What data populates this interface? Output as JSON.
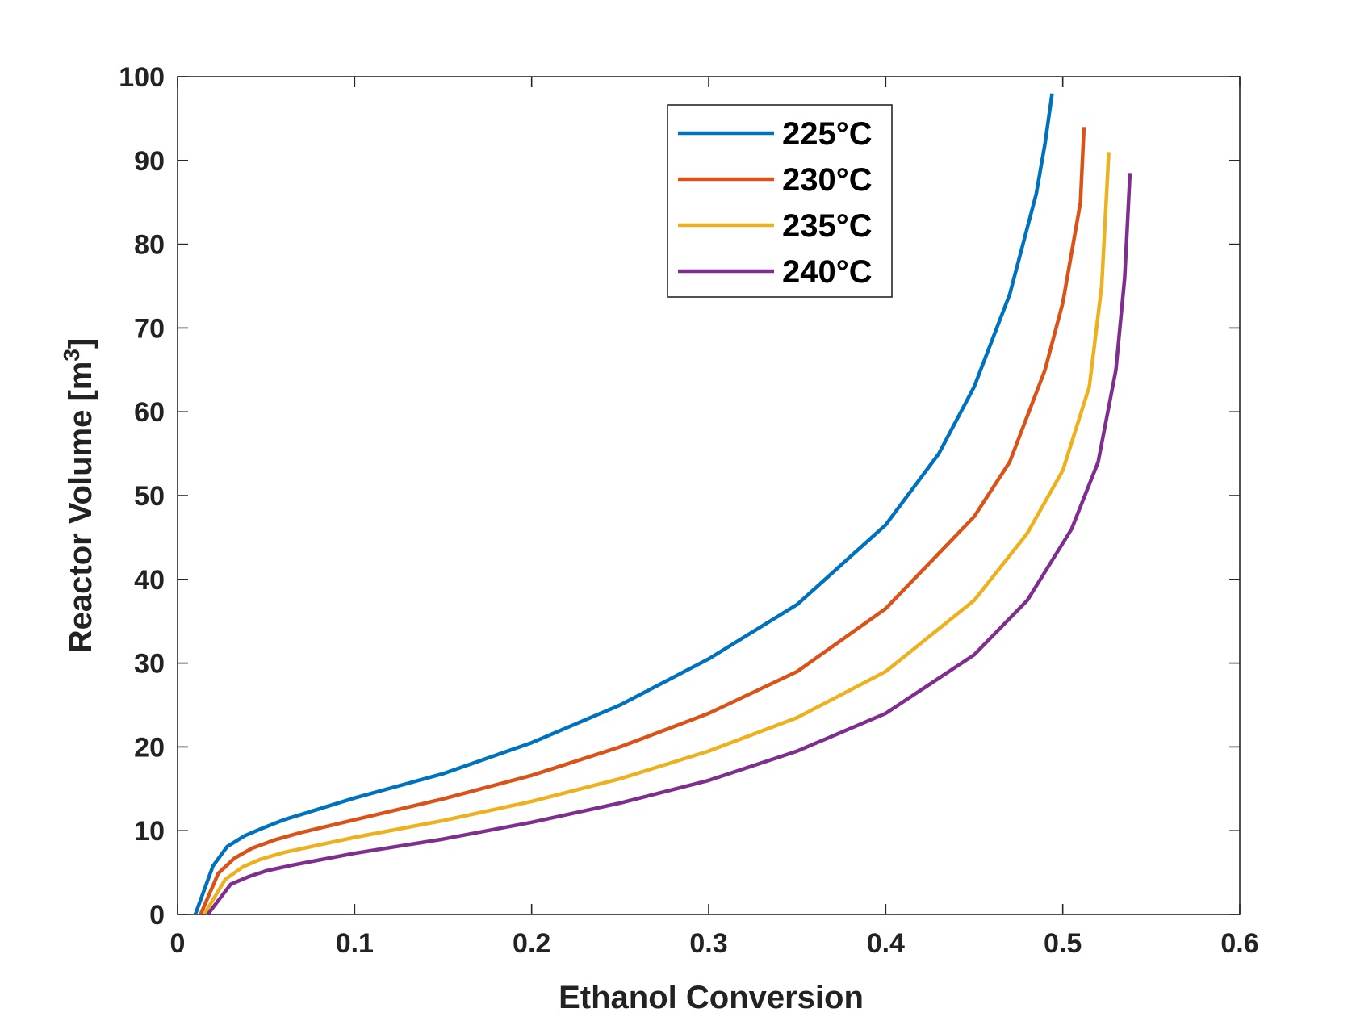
{
  "chart_data": {
    "type": "line",
    "title": "",
    "xlabel": "Ethanol Conversion",
    "ylabel": "Reactor Volume [m",
    "ylabel_superscript": "3",
    "ylabel_suffix": "]",
    "xlim": [
      0,
      0.6
    ],
    "ylim": [
      0,
      100
    ],
    "x_ticks": [
      0,
      0.1,
      0.2,
      0.3,
      0.4,
      0.5,
      0.6
    ],
    "x_tick_labels": [
      "0",
      "0.1",
      "0.2",
      "0.3",
      "0.4",
      "0.5",
      "0.6"
    ],
    "y_ticks": [
      0,
      10,
      20,
      30,
      40,
      50,
      60,
      70,
      80,
      90,
      100
    ],
    "y_tick_labels": [
      "0",
      "10",
      "20",
      "30",
      "40",
      "50",
      "60",
      "70",
      "80",
      "90",
      "100"
    ],
    "grid": false,
    "legend_position": "top-right",
    "series": [
      {
        "name": "225°C",
        "color": "#0072BD",
        "points": [
          [
            0.01,
            0
          ],
          [
            0.02,
            5.8
          ],
          [
            0.028,
            8.1
          ],
          [
            0.038,
            9.4
          ],
          [
            0.048,
            10.3
          ],
          [
            0.06,
            11.3
          ],
          [
            0.08,
            12.6
          ],
          [
            0.1,
            13.9
          ],
          [
            0.15,
            16.8
          ],
          [
            0.2,
            20.5
          ],
          [
            0.25,
            25
          ],
          [
            0.3,
            30.5
          ],
          [
            0.35,
            37
          ],
          [
            0.4,
            46.5
          ],
          [
            0.43,
            55
          ],
          [
            0.45,
            63
          ],
          [
            0.47,
            74
          ],
          [
            0.485,
            86
          ],
          [
            0.49,
            92
          ],
          [
            0.494,
            98
          ]
        ]
      },
      {
        "name": "230°C",
        "color": "#D95319",
        "points": [
          [
            0.013,
            0
          ],
          [
            0.023,
            4.9
          ],
          [
            0.032,
            6.7
          ],
          [
            0.042,
            7.9
          ],
          [
            0.055,
            8.9
          ],
          [
            0.07,
            9.8
          ],
          [
            0.1,
            11.3
          ],
          [
            0.15,
            13.8
          ],
          [
            0.2,
            16.6
          ],
          [
            0.25,
            20
          ],
          [
            0.3,
            24
          ],
          [
            0.35,
            29
          ],
          [
            0.4,
            36.5
          ],
          [
            0.45,
            47.5
          ],
          [
            0.47,
            54
          ],
          [
            0.49,
            65
          ],
          [
            0.5,
            73
          ],
          [
            0.51,
            85
          ],
          [
            0.512,
            94
          ]
        ]
      },
      {
        "name": "235°C",
        "color": "#EDB120",
        "points": [
          [
            0.015,
            0
          ],
          [
            0.027,
            4.2
          ],
          [
            0.037,
            5.7
          ],
          [
            0.047,
            6.6
          ],
          [
            0.06,
            7.4
          ],
          [
            0.08,
            8.3
          ],
          [
            0.1,
            9.2
          ],
          [
            0.15,
            11.2
          ],
          [
            0.2,
            13.5
          ],
          [
            0.25,
            16.2
          ],
          [
            0.3,
            19.5
          ],
          [
            0.35,
            23.5
          ],
          [
            0.4,
            29
          ],
          [
            0.45,
            37.5
          ],
          [
            0.48,
            45.5
          ],
          [
            0.5,
            53
          ],
          [
            0.515,
            63
          ],
          [
            0.522,
            75
          ],
          [
            0.526,
            91
          ]
        ]
      },
      {
        "name": "240°C",
        "color": "#7E2F8E",
        "points": [
          [
            0.017,
            0
          ],
          [
            0.03,
            3.6
          ],
          [
            0.04,
            4.5
          ],
          [
            0.05,
            5.2
          ],
          [
            0.065,
            5.9
          ],
          [
            0.08,
            6.5
          ],
          [
            0.1,
            7.3
          ],
          [
            0.15,
            9
          ],
          [
            0.2,
            11
          ],
          [
            0.25,
            13.3
          ],
          [
            0.3,
            16
          ],
          [
            0.35,
            19.5
          ],
          [
            0.4,
            24
          ],
          [
            0.45,
            31
          ],
          [
            0.48,
            37.5
          ],
          [
            0.505,
            46
          ],
          [
            0.52,
            54
          ],
          [
            0.53,
            65
          ],
          [
            0.535,
            76
          ],
          [
            0.538,
            88.5
          ]
        ]
      }
    ]
  }
}
